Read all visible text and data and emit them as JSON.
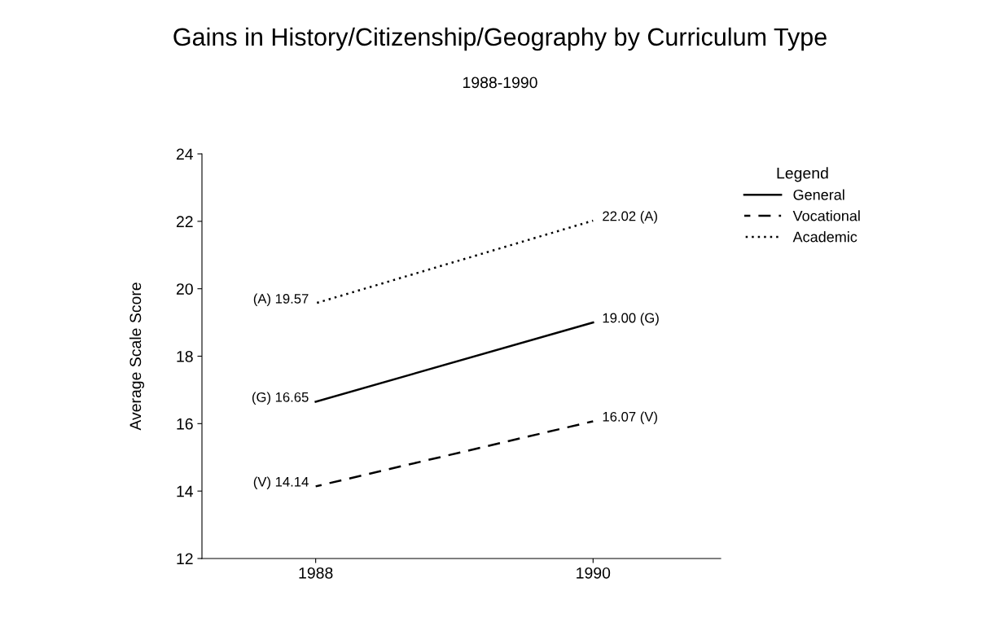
{
  "chart_data": {
    "type": "line",
    "title": "Gains in History/Citizenship/Geography by Curriculum Type",
    "subtitle": "1988-1990",
    "ylabel": "Average Scale Score",
    "legend_title": "Legend",
    "x": [
      1988,
      1990
    ],
    "xlim": [
      1987.18,
      1990.92
    ],
    "xticks": [
      1988,
      1990
    ],
    "ylim": [
      12,
      24
    ],
    "yticks": [
      12,
      14,
      16,
      18,
      20,
      22,
      24
    ],
    "series": [
      {
        "name": "General",
        "color": "#000000",
        "line_style": "solid",
        "values": [
          16.65,
          19.0
        ],
        "value_labels": [
          "(G) 16.65",
          "19.00 (G)"
        ]
      },
      {
        "name": "Vocational",
        "color": "#000000",
        "line_style": "dashed",
        "values": [
          14.14,
          16.07
        ],
        "value_labels": [
          "(V) 14.14",
          "16.07 (V)"
        ]
      },
      {
        "name": "Academic",
        "color": "#000000",
        "line_style": "dotted",
        "values": [
          19.57,
          22.02
        ],
        "value_labels": [
          "(A) 19.57",
          "22.02 (A)"
        ]
      }
    ],
    "grid": false,
    "legend": "top right",
    "marker": "none"
  }
}
